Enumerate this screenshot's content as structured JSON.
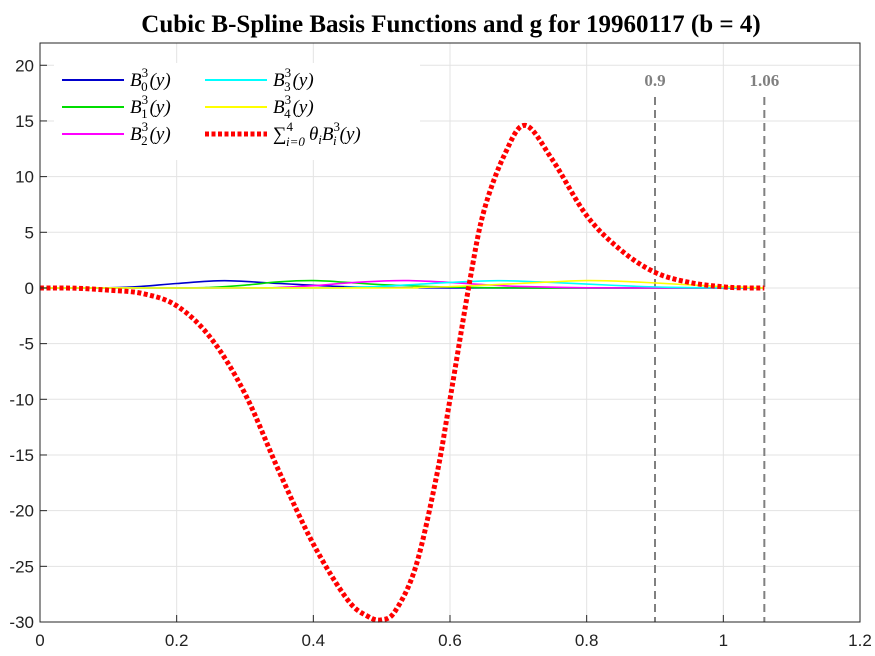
{
  "chart_data": {
    "type": "line",
    "title": "Cubic B-Spline Basis Functions and g for 19960117 (b = 4)",
    "xlabel": "",
    "ylabel": "",
    "xlim": [
      0,
      1.2
    ],
    "ylim": [
      -30,
      22
    ],
    "xticks": [
      "0",
      "0.2",
      "0.4",
      "0.6",
      "0.8",
      "1",
      "1.2"
    ],
    "yticks": [
      "20",
      "15",
      "10",
      "5",
      "0",
      "-5",
      "-10",
      "-15",
      "-20",
      "-25",
      "-30"
    ],
    "grid": true,
    "legend_position": "top-left",
    "vlines": [
      {
        "x": 0.9,
        "label": "0.9",
        "color": "#808080"
      },
      {
        "x": 1.06,
        "label": "1.06",
        "color": "#808080"
      }
    ],
    "series": [
      {
        "name": "B_0^3(y)",
        "legend": {
          "base": "B",
          "sup": "3",
          "sub": "0",
          "tail": "(y)"
        },
        "color": "#0000cc",
        "style": "solid",
        "x": [
          0,
          0.1,
          0.15,
          0.2,
          0.27,
          0.35,
          0.43,
          0.5,
          0.6,
          0.7,
          0.8,
          0.9,
          1.0,
          1.06
        ],
        "y": [
          0,
          0.02,
          0.15,
          0.4,
          0.65,
          0.4,
          0.15,
          0.04,
          0,
          0,
          0,
          0,
          0,
          0
        ]
      },
      {
        "name": "B_1^3(y)",
        "legend": {
          "base": "B",
          "sup": "3",
          "sub": "1",
          "tail": "(y)"
        },
        "color": "#00dd00",
        "style": "solid",
        "x": [
          0,
          0.2,
          0.25,
          0.3,
          0.35,
          0.4,
          0.45,
          0.5,
          0.6,
          0.7,
          0.8,
          0.9,
          1.0,
          1.06
        ],
        "y": [
          0,
          0,
          0.05,
          0.25,
          0.55,
          0.66,
          0.5,
          0.3,
          0.08,
          0,
          0,
          0,
          0,
          0
        ]
      },
      {
        "name": "B_2^3(y)",
        "legend": {
          "base": "B",
          "sup": "3",
          "sub": "2",
          "tail": "(y)"
        },
        "color": "#ff00ff",
        "style": "solid",
        "x": [
          0,
          0.3,
          0.35,
          0.4,
          0.45,
          0.5,
          0.54,
          0.6,
          0.65,
          0.7,
          0.8,
          0.9,
          1.0,
          1.06
        ],
        "y": [
          0,
          0,
          0.05,
          0.2,
          0.45,
          0.62,
          0.66,
          0.5,
          0.3,
          0.14,
          0.02,
          0,
          0,
          0
        ]
      },
      {
        "name": "B_3^3(y)",
        "legend": {
          "base": "B",
          "sup": "3",
          "sub": "3",
          "tail": "(y)"
        },
        "color": "#00ffff",
        "style": "solid",
        "x": [
          0,
          0.4,
          0.45,
          0.5,
          0.55,
          0.6,
          0.67,
          0.73,
          0.8,
          0.86,
          0.92,
          1.0,
          1.06
        ],
        "y": [
          0,
          0,
          0.05,
          0.15,
          0.32,
          0.5,
          0.65,
          0.55,
          0.35,
          0.18,
          0.06,
          0.01,
          0
        ]
      },
      {
        "name": "B_4^3(y)",
        "legend": {
          "base": "B",
          "sup": "3",
          "sub": "4",
          "tail": "(y)"
        },
        "color": "#ffff00",
        "style": "solid",
        "x": [
          0,
          0.5,
          0.55,
          0.6,
          0.65,
          0.7,
          0.75,
          0.8,
          0.85,
          0.9,
          0.95,
          1.0,
          1.06
        ],
        "y": [
          0,
          0,
          0.05,
          0.12,
          0.25,
          0.4,
          0.55,
          0.66,
          0.6,
          0.45,
          0.28,
          0.12,
          0
        ]
      },
      {
        "name": "sum_{i=0}^4 theta_i B_i^3(y)",
        "legend": {
          "base": "θ",
          "sup": "4",
          "sub": "i=0",
          "tail": "",
          "sum": true
        },
        "color": "#ff0000",
        "style": "dotted",
        "x": [
          0,
          0.05,
          0.1,
          0.15,
          0.2,
          0.25,
          0.3,
          0.35,
          0.4,
          0.45,
          0.48,
          0.5,
          0.52,
          0.55,
          0.58,
          0.6,
          0.63,
          0.65,
          0.68,
          0.71,
          0.75,
          0.8,
          0.85,
          0.9,
          0.95,
          1.0,
          1.03,
          1.06
        ],
        "y": [
          0,
          -0.02,
          -0.2,
          -0.5,
          -1.6,
          -4.5,
          -9.5,
          -16.5,
          -23,
          -28,
          -29.5,
          -29.8,
          -29,
          -25,
          -17,
          -10,
          1,
          7,
          12,
          14.6,
          11.5,
          6.5,
          3.4,
          1.4,
          0.5,
          0.1,
          0.01,
          0
        ]
      }
    ]
  }
}
